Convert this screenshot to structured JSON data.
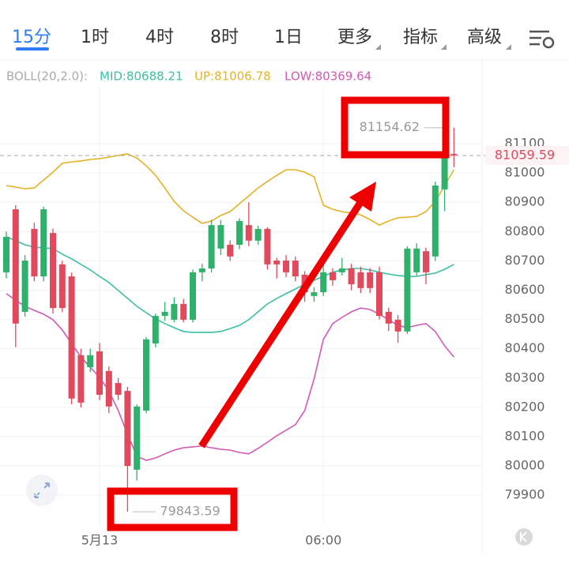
{
  "tabs": [
    "15分",
    "1时",
    "4时",
    "8时",
    "1日",
    "更多",
    "指标",
    "高级"
  ],
  "chart_data": {
    "type": "candlestick",
    "indicator_label": "BOLL(20,2.0):",
    "categories": [
      null,
      null,
      null,
      null,
      null,
      null,
      null,
      null,
      null,
      null,
      "5月13",
      null,
      null,
      null,
      null,
      null,
      null,
      null,
      null,
      null,
      null,
      null,
      null,
      null,
      null,
      null,
      null,
      null,
      null,
      null,
      null,
      null,
      null,
      null,
      "06:00",
      null,
      null,
      null,
      null,
      null,
      null,
      null,
      null,
      null,
      null,
      null,
      null,
      null,
      null
    ],
    "open": [
      80661,
      80876,
      80526,
      80809,
      80647,
      80795,
      80688,
      80647,
      80378,
      80337,
      80391,
      80324,
      80283,
      80256,
      79987,
      80189,
      80418,
      80512,
      80499,
      80553,
      80499,
      80661,
      80674,
      80742,
      80755,
      80755,
      80822,
      80769,
      80809,
      80701,
      80701,
      80701,
      80653,
      80580,
      80593,
      80661,
      80661,
      80674,
      80661,
      80661,
      80661,
      80526,
      80499,
      80459,
      80661,
      80733,
      80715,
      80944,
      81065
    ],
    "high": [
      80800,
      80890,
      80720,
      80830,
      80885,
      80810,
      80700,
      80660,
      80400,
      80400,
      80420,
      80340,
      80300,
      80270,
      80210,
      80440,
      80520,
      80560,
      80575,
      80570,
      80670,
      80690,
      80840,
      80840,
      80770,
      80845,
      80900,
      80820,
      80815,
      80710,
      80720,
      80715,
      80665,
      80610,
      80700,
      80675,
      80710,
      80690,
      80680,
      80675,
      80680,
      80540,
      80515,
      80750,
      80760,
      80745,
      80970,
      81080,
      81154.62
    ],
    "low": [
      80640,
      80405,
      80510,
      80630,
      80630,
      80520,
      80525,
      80210,
      80200,
      80320,
      80225,
      80180,
      80225,
      79843.59,
      79950,
      80180,
      80405,
      80495,
      80490,
      80490,
      80490,
      80630,
      80660,
      80720,
      80700,
      80740,
      80750,
      80755,
      80670,
      80640,
      80645,
      80630,
      80560,
      80560,
      80580,
      80615,
      80650,
      80600,
      80590,
      80590,
      80500,
      80460,
      80420,
      80450,
      80650,
      80620,
      80700,
      80870,
      81020
    ],
    "close": [
      80782,
      80486,
      80701,
      80647,
      80876,
      80539,
      80539,
      80230,
      80216,
      80378,
      80243,
      80203,
      80243,
      80000,
      80203,
      80432,
      80512,
      80526,
      80553,
      80499,
      80661,
      80674,
      80822,
      80822,
      80715,
      80836,
      80769,
      80809,
      80688,
      80688,
      80661,
      80647,
      80593,
      80593,
      80661,
      80634,
      80674,
      80620,
      80607,
      80607,
      80512,
      80486,
      80459,
      80742,
      80742,
      80661,
      80957,
      81065,
      81059.59
    ],
    "up_color": "#2fb06b",
    "down_color": "#e04a5c",
    "series": [
      {
        "name": "MID:80688.21",
        "color": "#3cbfa4",
        "values": [
          80782,
          80769,
          80755,
          80747,
          80744,
          80742,
          80723,
          80707,
          80688,
          80669,
          80647,
          80626,
          80599,
          80572,
          80545,
          80523,
          80502,
          80486,
          80472,
          80459,
          80456,
          80456,
          80456,
          80459,
          80469,
          80480,
          80499,
          80526,
          80553,
          80572,
          80588,
          80604,
          80620,
          80634,
          80647,
          80661,
          80669,
          80674,
          80674,
          80669,
          80661,
          80655,
          80650,
          80647,
          80647,
          80653,
          80658,
          80671,
          80688
        ]
      },
      {
        "name": "UP:81006.78",
        "color": "#e6b124",
        "values": [
          80957,
          80952,
          80946,
          80949,
          80976,
          81003,
          81033,
          81038,
          81041,
          81046,
          81049,
          81054,
          81060,
          81065,
          81051,
          81025,
          80992,
          80949,
          80903,
          80871,
          80849,
          80828,
          80836,
          80855,
          80868,
          80895,
          80922,
          80949,
          80971,
          80992,
          81011,
          81011,
          81003,
          80987,
          80890,
          80876,
          80868,
          80863,
          80857,
          80841,
          80822,
          80836,
          80847,
          80849,
          80852,
          80868,
          80903,
          80957,
          81011
        ]
      },
      {
        "name": "LOW:80369.64",
        "color": "#d25ab6",
        "values": [
          80588,
          80566,
          80545,
          80531,
          80518,
          80499,
          80464,
          80418,
          80372,
          80337,
          80302,
          80256,
          80189,
          80108,
          80033,
          80019,
          80027,
          80041,
          80054,
          80062,
          80065,
          80068,
          80062,
          80057,
          80054,
          80046,
          80041,
          80060,
          80081,
          80103,
          80122,
          80141,
          80189,
          80297,
          80432,
          80486,
          80507,
          80526,
          80539,
          80534,
          80518,
          80499,
          80480,
          80472,
          80480,
          80486,
          80459,
          80410,
          80372
        ]
      }
    ],
    "ylim": [
      79798,
      81294
    ],
    "yticks": [
      79900,
      80000,
      80100,
      80200,
      80300,
      80400,
      80500,
      80600,
      80700,
      80800,
      80900,
      81000,
      81100
    ],
    "grid": true,
    "max_label": 81154.62,
    "min_label": 79843.59,
    "last_price": 81059.59
  }
}
